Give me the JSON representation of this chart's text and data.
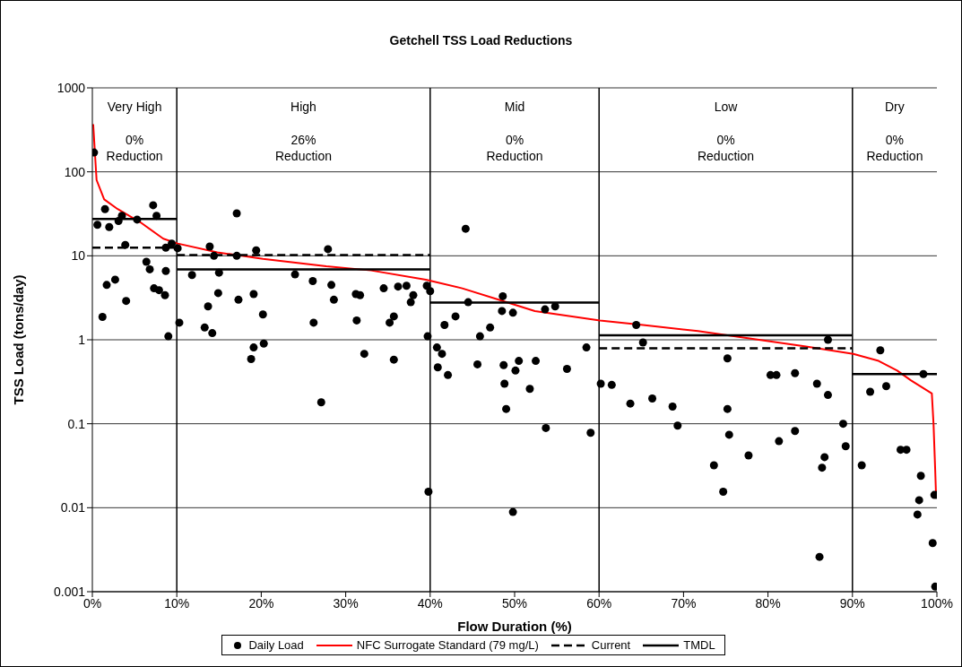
{
  "chart_data": {
    "type": "scatter",
    "title": "Getchell TSS Load Reductions",
    "xlabel": "Flow Duration (%)",
    "ylabel": "TSS Load (tons/day)",
    "log": "y",
    "grid": "y",
    "legend": "bottom",
    "xlim": [
      0,
      100
    ],
    "xticks": [
      {
        "value": 0,
        "label": "0%"
      },
      {
        "value": 10,
        "label": "10%"
      },
      {
        "value": 20,
        "label": "20%"
      },
      {
        "value": 30,
        "label": "30%"
      },
      {
        "value": 40,
        "label": "40%"
      },
      {
        "value": 50,
        "label": "50%"
      },
      {
        "value": 60,
        "label": "60%"
      },
      {
        "value": 70,
        "label": "70%"
      },
      {
        "value": 80,
        "label": "80%"
      },
      {
        "value": 90,
        "label": "90%"
      },
      {
        "value": 100,
        "label": "100%"
      }
    ],
    "ylim": [
      0.001,
      1000
    ],
    "yticks": [
      0.001,
      0.01,
      0.1,
      1,
      10,
      100,
      1000
    ],
    "ref_lines": [
      {
        "axis": "x",
        "value": 10,
        "color": "#000000"
      },
      {
        "axis": "x",
        "value": 40,
        "color": "#000000"
      },
      {
        "axis": "x",
        "value": 60,
        "color": "#000000"
      },
      {
        "axis": "x",
        "value": 90,
        "color": "#000000"
      }
    ],
    "annotations": [
      "Very High",
      "0% Reduction",
      "High",
      "26% Reduction",
      "Mid",
      "0% Reduction",
      "Low",
      "0% Reduction",
      "Dry",
      "0% Reduction"
    ],
    "series": [
      {
        "name": "Daily Load",
        "color": "#000000",
        "marker": "circle",
        "x": [
          0.2,
          0.6,
          1.2,
          1.5,
          1.7,
          2.0,
          2.7,
          3.1,
          3.5,
          3.9,
          4.0,
          5.3,
          6.4,
          6.8,
          7.2,
          7.3,
          7.6,
          7.9,
          8.6,
          8.7,
          8.7,
          9.0,
          9.4,
          10.1,
          10.3,
          11.8,
          13.3,
          13.7,
          13.9,
          14.2,
          14.4,
          14.9,
          15.0,
          17.1,
          17.1,
          17.3,
          18.8,
          19.1,
          19.1,
          19.4,
          20.2,
          20.3,
          24.0,
          26.1,
          26.2,
          27.1,
          27.9,
          28.3,
          28.6,
          31.2,
          31.3,
          31.7,
          32.2,
          34.5,
          35.2,
          35.7,
          35.7,
          36.2,
          37.2,
          37.7,
          38.0,
          39.6,
          39.7,
          39.8,
          40.0,
          40.8,
          40.9,
          41.4,
          41.7,
          42.1,
          43.0,
          44.2,
          44.5,
          45.6,
          45.9,
          47.1,
          48.5,
          48.6,
          48.7,
          48.8,
          49.0,
          49.8,
          49.8,
          50.1,
          50.5,
          51.8,
          52.5,
          53.6,
          53.7,
          54.8,
          56.2,
          58.5,
          59.0,
          60.2,
          61.5,
          63.7,
          64.4,
          65.2,
          66.3,
          68.7,
          69.3,
          73.6,
          74.7,
          75.2,
          75.2,
          75.4,
          77.7,
          80.3,
          81.0,
          81.3,
          83.2,
          83.2,
          85.8,
          86.1,
          86.4,
          86.7,
          87.1,
          87.1,
          88.9,
          89.2,
          91.1,
          92.1,
          93.3,
          94.0,
          95.7,
          96.4,
          97.7,
          97.9,
          98.1,
          98.4,
          99.5,
          99.7,
          99.8,
          100
        ],
        "values": [
          170,
          23.4,
          1.87,
          36,
          4.5,
          22,
          5.2,
          26,
          30,
          13.5,
          2.9,
          27,
          8.5,
          6.9,
          40,
          4.1,
          30,
          3.9,
          3.4,
          6.6,
          12.5,
          1.1,
          14,
          12.3,
          1.6,
          5.9,
          1.4,
          2.5,
          12.9,
          1.2,
          10,
          3.6,
          6.3,
          32,
          10,
          3.0,
          0.59,
          0.81,
          3.5,
          11.6,
          2.0,
          0.9,
          6.0,
          5.0,
          1.6,
          0.18,
          12,
          4.5,
          3.0,
          3.5,
          1.7,
          3.4,
          0.68,
          4.1,
          1.6,
          1.9,
          0.58,
          4.3,
          4.4,
          2.8,
          3.4,
          4.4,
          1.1,
          0.0155,
          3.8,
          0.81,
          0.47,
          0.68,
          1.5,
          0.38,
          1.9,
          21,
          2.8,
          0.51,
          1.1,
          1.4,
          2.2,
          3.3,
          0.5,
          0.3,
          0.15,
          2.1,
          0.0089,
          0.43,
          0.56,
          0.26,
          0.56,
          2.3,
          0.089,
          2.5,
          0.45,
          0.81,
          0.078,
          0.3,
          0.29,
          0.174,
          1.5,
          0.93,
          0.2,
          0.16,
          0.095,
          0.032,
          0.0155,
          0.6,
          0.15,
          0.074,
          0.042,
          0.38,
          0.38,
          0.062,
          0.4,
          0.082,
          0.3,
          0.0026,
          0.03,
          0.04,
          1.0,
          0.22,
          0.1,
          0.054,
          0.032,
          0.24,
          0.75,
          0.28,
          0.049,
          0.049,
          0.0083,
          0.0123,
          0.024,
          0.39,
          0.0038,
          0.0142,
          0.00115,
          0.0142
        ]
      },
      {
        "name": "NFC Surrogate Standard (79 mg/L)",
        "type": "line",
        "color": "#ff0000",
        "marker": "none",
        "line_style": "solid",
        "x": [
          0.1,
          0.5,
          1.4,
          3.0,
          5.7,
          8.4,
          10.1,
          14.8,
          20.2,
          27.7,
          33,
          39.5,
          43.8,
          48.1,
          52.4,
          60.1,
          65.2,
          71.7,
          78,
          84.5,
          90.1,
          93.1,
          95.3,
          96.9,
          99.4,
          99.6,
          99.8,
          99.9
        ],
        "values": [
          370,
          80,
          47,
          36,
          25,
          16,
          14,
          11,
          9.2,
          7.5,
          6.7,
          5.2,
          4.1,
          3.0,
          2.2,
          1.7,
          1.5,
          1.27,
          1.03,
          0.83,
          0.68,
          0.56,
          0.43,
          0.33,
          0.23,
          0.1,
          0.028,
          0.014
        ]
      },
      {
        "name": "Current",
        "type": "line",
        "color": "#000000",
        "marker": "none",
        "line_style": "dashed",
        "x": [
          0,
          10,
          null,
          10,
          40,
          null,
          60,
          90
        ],
        "values": [
          12.5,
          12.5,
          null,
          10.2,
          10.2,
          null,
          0.79,
          0.79
        ]
      },
      {
        "name": "TMDL",
        "type": "line",
        "color": "#000000",
        "marker": "none",
        "line_style": "solid",
        "x": [
          0,
          10,
          null,
          10,
          40,
          null,
          40,
          60,
          null,
          60,
          90,
          null,
          90,
          100
        ],
        "values": [
          27.4,
          27.4,
          null,
          6.9,
          6.9,
          null,
          2.77,
          2.77,
          null,
          1.13,
          1.13,
          null,
          0.39,
          0.39
        ]
      }
    ]
  }
}
